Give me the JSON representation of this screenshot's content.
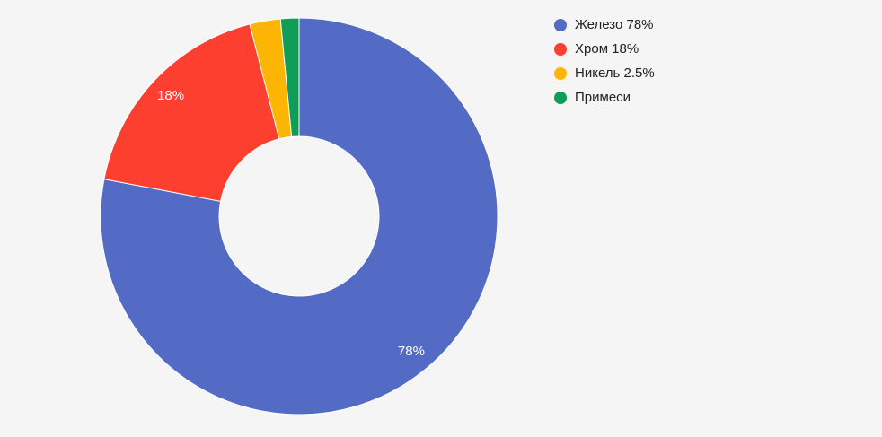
{
  "chart_data": {
    "type": "pie",
    "donut": true,
    "slices": [
      {
        "label": "Железо 78%",
        "value": 78.0,
        "color": "#546bc5",
        "data_label": "78%"
      },
      {
        "label": "Хром 18%",
        "value": 18.0,
        "color": "#fd3f30",
        "data_label": "18%"
      },
      {
        "label": "Никель 2.5%",
        "value": 2.5,
        "color": "#fbb502",
        "data_label": ""
      },
      {
        "label": "Примеси",
        "value": 1.5,
        "color": "#0f9d58",
        "data_label": ""
      }
    ],
    "legend_position": "right"
  }
}
